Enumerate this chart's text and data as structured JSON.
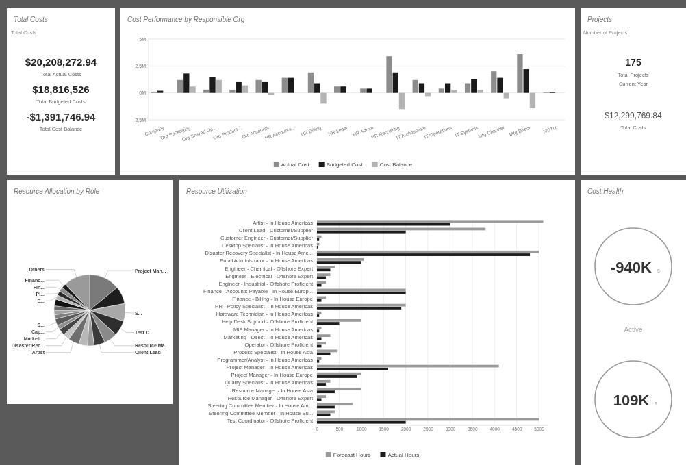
{
  "chart_data": [
    {
      "type": "other",
      "title": "Total Costs",
      "annotations": [
        "Total Costs",
        "$20,208,272.94",
        "Total Actual Costs",
        "$18,816,526",
        "Total Budgeted Costs",
        "-$1,391,746.94",
        "Total Cost Balance"
      ]
    },
    {
      "type": "bar",
      "title": "Cost Performance by Responsible Org",
      "categories": [
        "Company",
        "Org Packaging",
        "Org Shared Op...",
        "Org Product ...",
        "Ofc Accounts",
        "HR Accounts...",
        "HR Billing",
        "HR Legal",
        "HR Admin",
        "HR Recruiting",
        "IT Architecture",
        "IT Operations",
        "IT Systems",
        "Mfg Channel",
        "Mfg Direct",
        "NOTU"
      ],
      "series": [
        {
          "name": "Actual Cost",
          "color": "#8c8c8c",
          "values": [
            0.1,
            1.2,
            0.3,
            0.3,
            1.2,
            1.4,
            1.9,
            0.6,
            0.4,
            3.4,
            1.2,
            0.4,
            0.9,
            2.0,
            3.6,
            0.05
          ]
        },
        {
          "name": "Budgeted Cost",
          "color": "#1a1a1a",
          "values": [
            0.2,
            1.8,
            1.5,
            1.0,
            1.0,
            1.4,
            0.9,
            0.6,
            0.4,
            1.9,
            0.9,
            0.9,
            1.3,
            1.4,
            2.2,
            0.05
          ]
        },
        {
          "name": "Cost Balance",
          "color": "#b3b3b3",
          "values": [
            null,
            0.6,
            1.2,
            0.7,
            -0.2,
            0,
            -1.0,
            0,
            0,
            -1.5,
            -0.3,
            0.3,
            0.3,
            -0.5,
            -1.4,
            null
          ]
        }
      ],
      "ylim": [
        -2.5,
        5
      ],
      "yticks": [
        {
          "value": -2.5,
          "label": "-2.5M"
        },
        {
          "value": 0,
          "label": "0M"
        },
        {
          "value": 2.5,
          "label": "2.5M"
        },
        {
          "value": 5,
          "label": "5M"
        }
      ],
      "grid": "y",
      "legend": "bottom"
    },
    {
      "type": "other",
      "title": "Projects",
      "annotations": [
        "Number of Projects",
        "175",
        "Total Projects",
        "Current Year",
        "$12,299,769.84",
        "Total Costs"
      ]
    },
    {
      "type": "pie",
      "title": "Resource Allocation by Role",
      "categories": [
        "Project Man...",
        null,
        "S...",
        "Test C...",
        "Resource Ma...",
        "Client Lead",
        null,
        null,
        "Artist",
        "Disaster Rec...",
        "Marketi...",
        "Cap...",
        "S...",
        null,
        null,
        null,
        null,
        "E...",
        "Pl...",
        "Fin...",
        "Financ...",
        "Others"
      ],
      "values": [
        14,
        8,
        8,
        7,
        6,
        5,
        3,
        4,
        5,
        3,
        3,
        2,
        3,
        2,
        2,
        2,
        3,
        2,
        2,
        2,
        2,
        12
      ],
      "colors": [
        "#7a7a7a",
        "#1e1e1e",
        "#a8a8a8",
        "#2e2e2e",
        "#8a8a8a",
        "#3a3a3a",
        "#9c9c9c",
        "#b8b8b8",
        "#6e6e6e",
        "#c4c4c4",
        "#444444",
        "#8f8f8f",
        "#5a5a5a",
        "#7f7f7f",
        "#a0a0a0",
        "#6a6a6a",
        "#111111",
        "#b0b0b0",
        "#2a2a2a",
        "#8a8a8a",
        "#1a1a1a",
        "#9a9a9a"
      ]
    },
    {
      "type": "bar",
      "orientation": "horizontal",
      "title": "Resource Utilization",
      "categories": [
        "Artist - In House Americas",
        "Client Lead - Customer/Supplier",
        "Customer Engineer - Customer/Supplier",
        "Desktop Specialist - In House Americas",
        "Disaster Recovery Specialist - In House Ame...",
        "Email Administrator - In House Americas",
        "Engineer - Chemical - Offshore Expert",
        "Engineer - Electrical - Offshore Expert",
        "Engineer - Industrial - Offshore Proficient",
        "Finance - Accounts Payable - In House Europ...",
        "Finance - Billing - In House Europe",
        "HR - Policy Specialist - In House Americas",
        "Hardware Technician - In House Americas",
        "Help Desk Support - Offshore Proficient",
        "MIS Manager - In House Americas",
        "Marketing - Direct - In House Americas",
        "Operator - Offshore Proficient",
        "Process Specialist - In House Asia",
        "Programmer/Analyst - In House Americas",
        "Project Manager - In House Americas",
        "Project Manager - In House Europe",
        "Quality Specialist - In House Americas",
        "Resource Manager - In House Asia",
        "Resource Manager - Offshore Expert",
        "Steering Committee Member - In House Am...",
        "Steering Committee Member - In House Eu...",
        "Test Coordinator - Offshore Proficient"
      ],
      "series": [
        {
          "name": "Forecast Hours",
          "color": "#9a9a9a",
          "values": [
            5100,
            3800,
            100,
            50,
            5000,
            1050,
            400,
            300,
            200,
            2000,
            200,
            2000,
            100,
            1000,
            100,
            300,
            200,
            450,
            100,
            4100,
            1000,
            300,
            1000,
            200,
            800,
            400,
            5000
          ]
        },
        {
          "name": "Actual Hours",
          "color": "#1a1a1a",
          "values": [
            3000,
            2000,
            50,
            30,
            4800,
            1000,
            300,
            200,
            100,
            2000,
            100,
            1900,
            50,
            500,
            50,
            100,
            100,
            300,
            50,
            1600,
            900,
            200,
            400,
            100,
            400,
            300,
            2000
          ]
        }
      ],
      "xlim": [
        0,
        5200
      ],
      "xticks": [
        0,
        500,
        1000,
        1500,
        2000,
        2500,
        3000,
        3500,
        4000,
        4500,
        5000
      ],
      "grid": "x",
      "legend": "bottom"
    },
    {
      "type": "other",
      "title": "Cost Health",
      "annotations": [
        "-940K",
        "$",
        "Active",
        "109K",
        "$"
      ]
    }
  ]
}
